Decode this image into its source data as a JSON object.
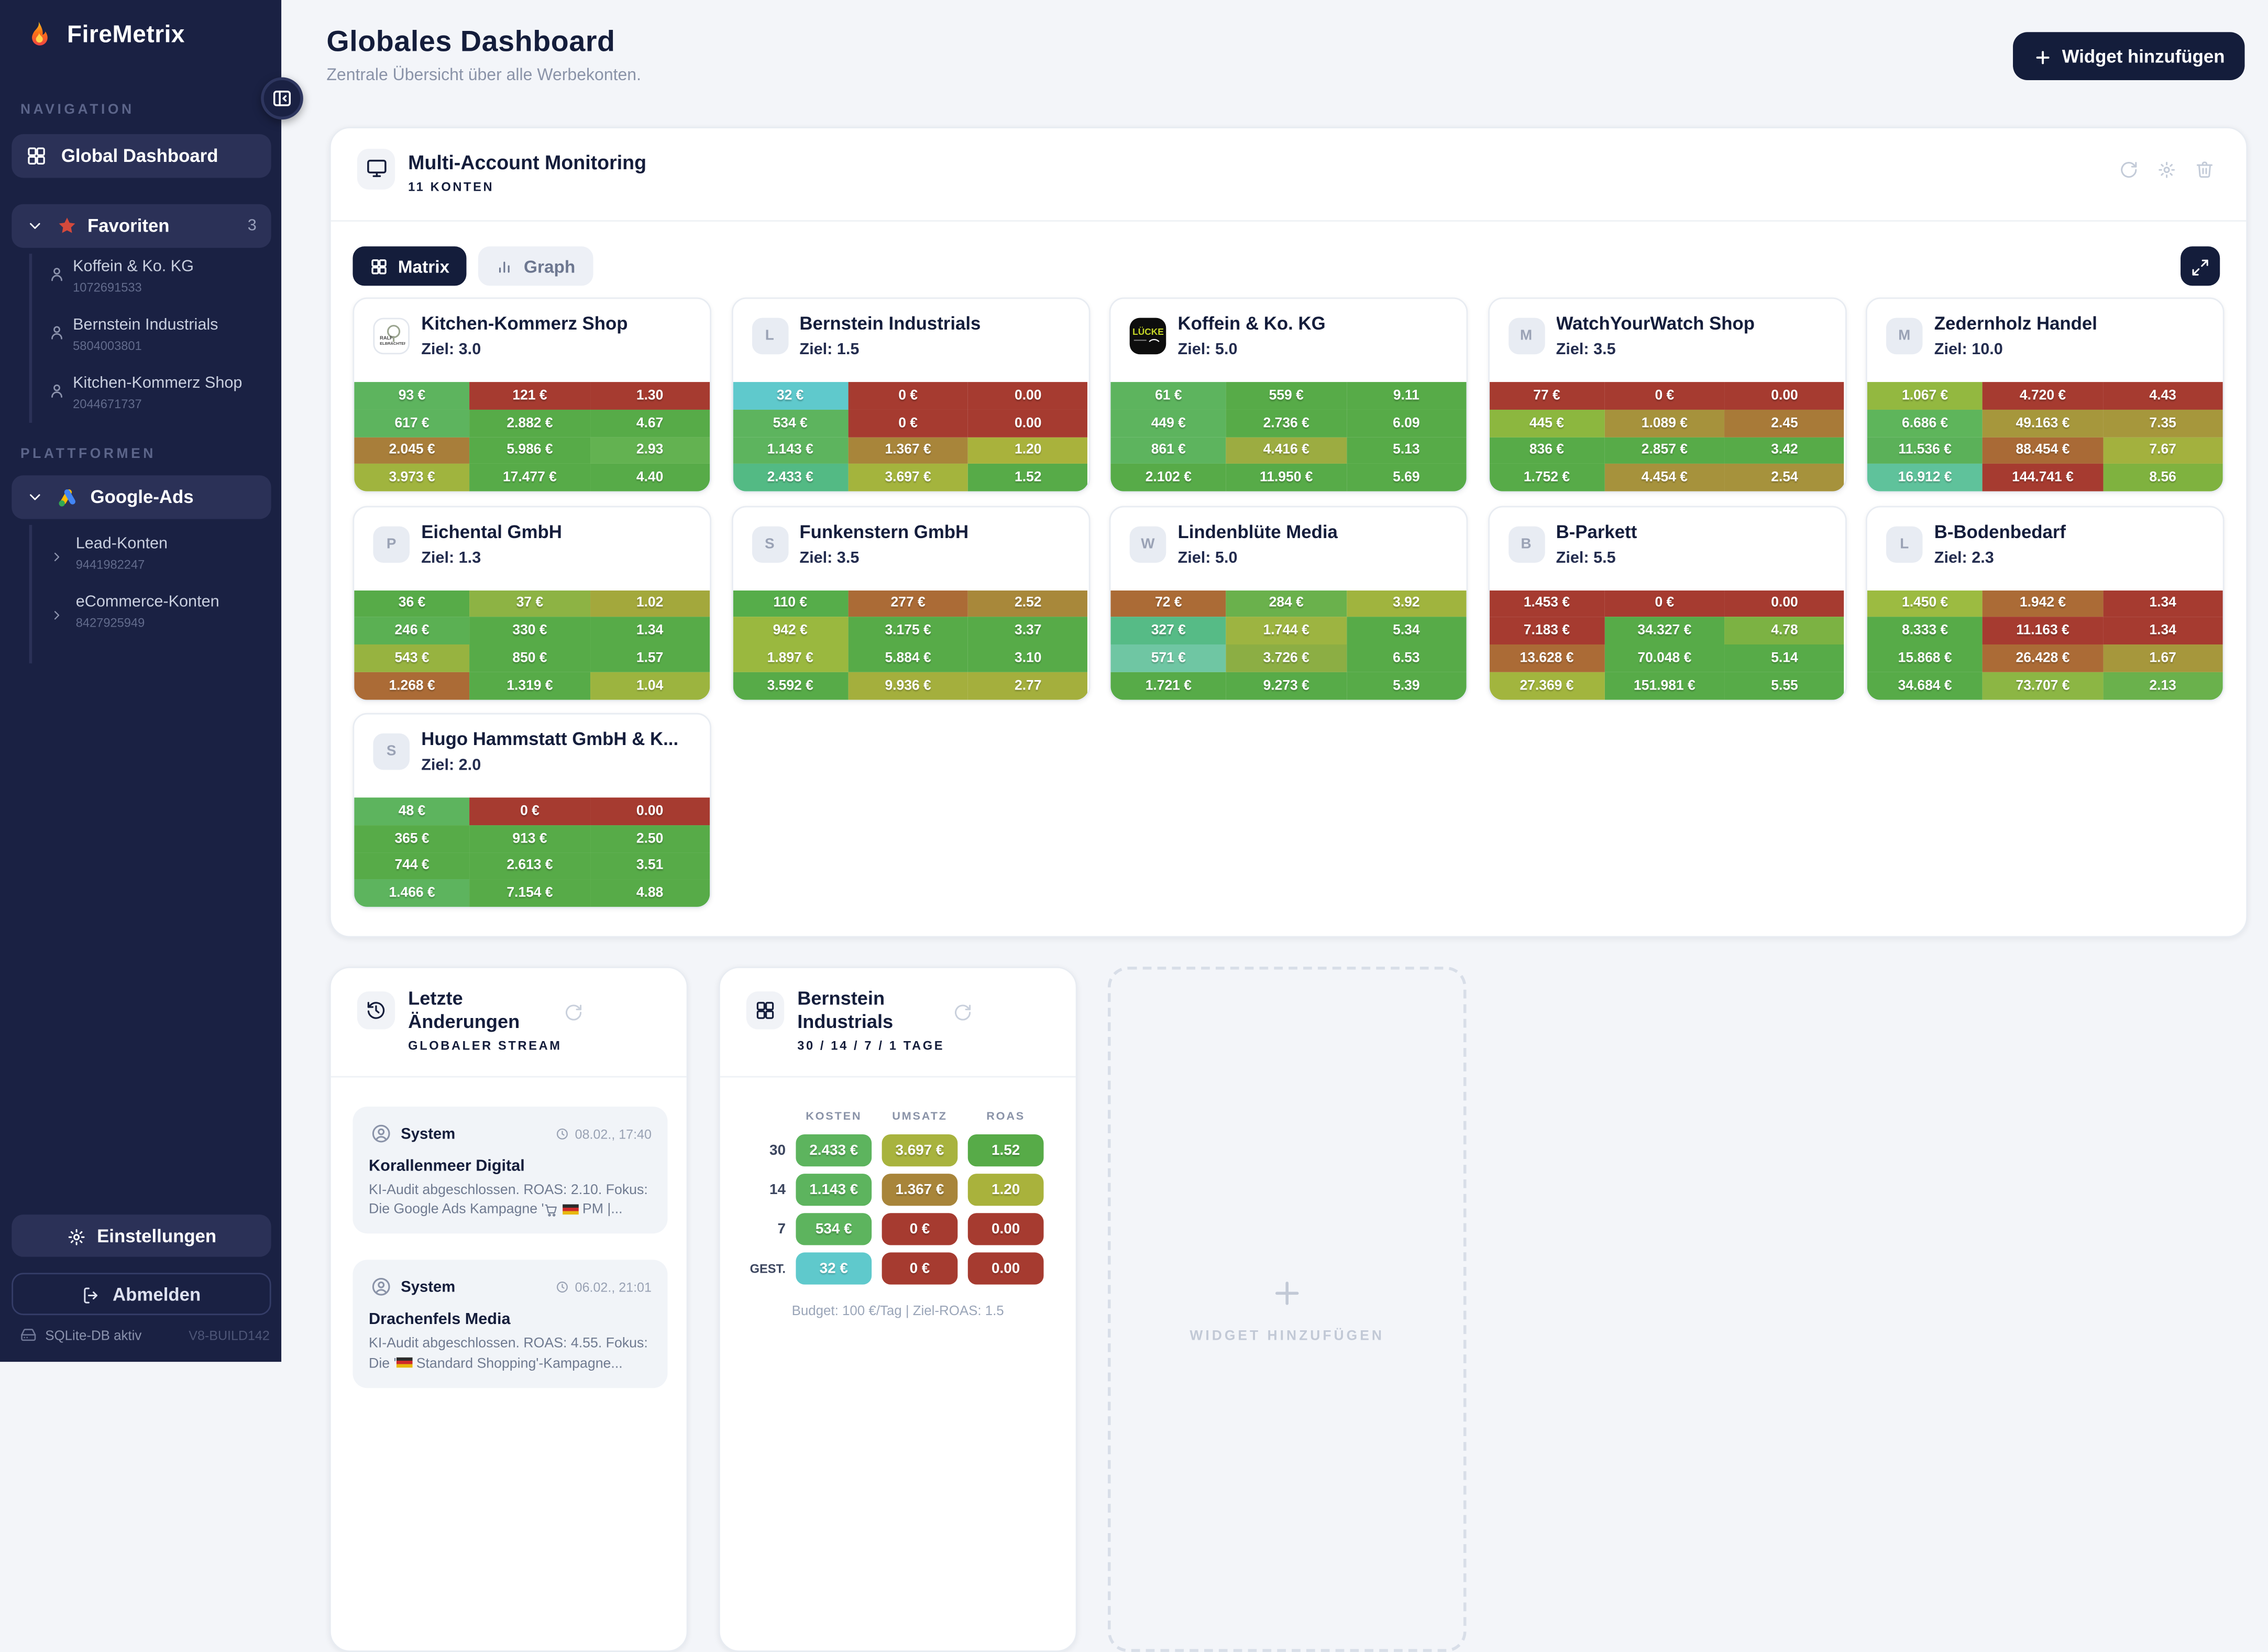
{
  "sidebar": {
    "brand": "FireMetrix",
    "nav_label": "NAVIGATION",
    "dashboard_item": "Global Dashboard",
    "favorites": {
      "label": "Favoriten",
      "count": "3",
      "items": [
        {
          "name": "Koffein & Ko. KG",
          "id": "1072691533"
        },
        {
          "name": "Bernstein Industrials",
          "id": "5804003801"
        },
        {
          "name": "Kitchen-Kommerz Shop",
          "id": "2044671737"
        }
      ]
    },
    "platforms_label": "PLATTFORMEN",
    "platform": {
      "label": "Google-Ads",
      "items": [
        {
          "name": "Lead-Konten",
          "id": "9441982247"
        },
        {
          "name": "eCommerce-Konten",
          "id": "8427925949"
        }
      ]
    },
    "settings_label": "Einstellungen",
    "logout_label": "Abmelden",
    "db_status": "SQLite-DB aktiv",
    "build": "V8-BUILD142"
  },
  "header": {
    "title": "Globales Dashboard",
    "subtitle": "Zentrale Übersicht über alle Werbekonten.",
    "add_widget_label": "Widget hinzufügen"
  },
  "monitor": {
    "title": "Multi-Account Monitoring",
    "subtitle": "11 KONTEN",
    "matrix_tab": "Matrix",
    "graph_tab": "Graph"
  },
  "accounts": [
    {
      "name": "Kitchen-Kommerz Shop",
      "goal": "Ziel: 3.0",
      "avatar": "logo-kitchen",
      "rows": [
        [
          [
            "93 €",
            "#5db45e"
          ],
          [
            "121 €",
            "#a63b30"
          ],
          [
            "1.30",
            "#a63b30"
          ]
        ],
        [
          [
            "617 €",
            "#5db45e"
          ],
          [
            "2.882 €",
            "#57ab48"
          ],
          [
            "4.67",
            "#57ab48"
          ]
        ],
        [
          [
            "2.045 €",
            "#a87e3a"
          ],
          [
            "5.986 €",
            "#57ab48"
          ],
          [
            "2.93",
            "#63b251"
          ]
        ],
        [
          [
            "3.973 €",
            "#a0b43e"
          ],
          [
            "17.477 €",
            "#57ab48"
          ],
          [
            "4.40",
            "#57ab48"
          ]
        ]
      ]
    },
    {
      "name": "Bernstein Industrials",
      "goal": "Ziel: 1.5",
      "avatar": "L",
      "rows": [
        [
          [
            "32 €",
            "#5fc9cc"
          ],
          [
            "0 €",
            "#a63b30"
          ],
          [
            "0.00",
            "#a63b30"
          ]
        ],
        [
          [
            "534 €",
            "#5db45e"
          ],
          [
            "0 €",
            "#a63b30"
          ],
          [
            "0.00",
            "#a63b30"
          ]
        ],
        [
          [
            "1.143 €",
            "#5db45e"
          ],
          [
            "1.367 €",
            "#a8853a"
          ],
          [
            "1.20",
            "#a9b23c"
          ]
        ],
        [
          [
            "2.433 €",
            "#53ba84"
          ],
          [
            "3.697 €",
            "#a4b43d"
          ],
          [
            "1.52",
            "#57ab48"
          ]
        ]
      ]
    },
    {
      "name": "Koffein & Ko. KG",
      "goal": "Ziel: 5.0",
      "avatar": "logo-koffein",
      "rows": [
        [
          [
            "61 €",
            "#5db45e"
          ],
          [
            "559 €",
            "#57ab48"
          ],
          [
            "9.11",
            "#57ab48"
          ]
        ],
        [
          [
            "449 €",
            "#5db45e"
          ],
          [
            "2.736 €",
            "#57ab48"
          ],
          [
            "6.09",
            "#57ab48"
          ]
        ],
        [
          [
            "861 €",
            "#5db45e"
          ],
          [
            "4.416 €",
            "#9cac41"
          ],
          [
            "5.13",
            "#57ab48"
          ]
        ],
        [
          [
            "2.102 €",
            "#57ab48"
          ],
          [
            "11.950 €",
            "#57ab48"
          ],
          [
            "5.69",
            "#57ab48"
          ]
        ]
      ]
    },
    {
      "name": "WatchYourWatch Shop",
      "goal": "Ziel: 3.5",
      "avatar": "M",
      "rows": [
        [
          [
            "77 €",
            "#a63b30"
          ],
          [
            "0 €",
            "#a63b30"
          ],
          [
            "0.00",
            "#a63b30"
          ]
        ],
        [
          [
            "445 €",
            "#8cb73f"
          ],
          [
            "1.089 €",
            "#a6923c"
          ],
          [
            "2.45",
            "#a87a38"
          ]
        ],
        [
          [
            "836 €",
            "#57ab48"
          ],
          [
            "2.857 €",
            "#57ab48"
          ],
          [
            "3.42",
            "#57ab48"
          ]
        ],
        [
          [
            "1.752 €",
            "#57ab48"
          ],
          [
            "4.454 €",
            "#a6923c"
          ],
          [
            "2.54",
            "#a6923c"
          ]
        ]
      ]
    },
    {
      "name": "Zedernholz Handel",
      "goal": "Ziel: 10.0",
      "avatar": "M",
      "rows": [
        [
          [
            "1.067 €",
            "#93b840"
          ],
          [
            "4.720 €",
            "#a63b30"
          ],
          [
            "4.43",
            "#a63b30"
          ]
        ],
        [
          [
            "6.686 €",
            "#5eb55b"
          ],
          [
            "49.163 €",
            "#a6973c"
          ],
          [
            "7.35",
            "#a6973c"
          ]
        ],
        [
          [
            "11.536 €",
            "#5bb159"
          ],
          [
            "88.454 €",
            "#a96a36"
          ],
          [
            "7.67",
            "#a3b13e"
          ]
        ],
        [
          [
            "16.912 €",
            "#5fc29b"
          ],
          [
            "144.741 €",
            "#a63b30"
          ],
          [
            "8.56",
            "#7fb23f"
          ]
        ]
      ]
    },
    {
      "name": "Eichental GmbH",
      "goal": "Ziel: 1.3",
      "avatar": "P",
      "rows": [
        [
          [
            "36 €",
            "#57ab48"
          ],
          [
            "37 €",
            "#8db344"
          ],
          [
            "1.02",
            "#a3a83c"
          ]
        ],
        [
          [
            "246 €",
            "#5bb053"
          ],
          [
            "330 €",
            "#57ab48"
          ],
          [
            "1.34",
            "#57ab48"
          ]
        ],
        [
          [
            "543 €",
            "#97b340"
          ],
          [
            "850 €",
            "#57ab48"
          ],
          [
            "1.57",
            "#57ab48"
          ]
        ],
        [
          [
            "1.268 €",
            "#ab6b36"
          ],
          [
            "1.319 €",
            "#57ab48"
          ],
          [
            "1.04",
            "#9cb43f"
          ]
        ]
      ]
    },
    {
      "name": "Funkenstern GmbH",
      "goal": "Ziel: 3.5",
      "avatar": "S",
      "rows": [
        [
          [
            "110 €",
            "#56ad4a"
          ],
          [
            "277 €",
            "#ab6b36"
          ],
          [
            "2.52",
            "#a8883a"
          ]
        ],
        [
          [
            "942 €",
            "#9ab83f"
          ],
          [
            "3.175 €",
            "#57ab48"
          ],
          [
            "3.37",
            "#57ab48"
          ]
        ],
        [
          [
            "1.897 €",
            "#9ab83f"
          ],
          [
            "5.884 €",
            "#57ab48"
          ],
          [
            "3.10",
            "#57ab48"
          ]
        ],
        [
          [
            "3.592 €",
            "#57ab48"
          ],
          [
            "9.936 €",
            "#a4af3d"
          ],
          [
            "2.77",
            "#a4af3d"
          ]
        ]
      ]
    },
    {
      "name": "Lindenblüte Media",
      "goal": "Ziel: 5.0",
      "avatar": "W",
      "rows": [
        [
          [
            "72 €",
            "#ab6b36"
          ],
          [
            "284 €",
            "#6ab14c"
          ],
          [
            "3.92",
            "#a0b43e"
          ]
        ],
        [
          [
            "327 €",
            "#56bb86"
          ],
          [
            "1.744 €",
            "#9db441"
          ],
          [
            "5.34",
            "#57ab48"
          ]
        ],
        [
          [
            "571 €",
            "#6fc6a3"
          ],
          [
            "3.726 €",
            "#8cae44"
          ],
          [
            "6.53",
            "#57ab48"
          ]
        ],
        [
          [
            "1.721 €",
            "#57ab48"
          ],
          [
            "9.273 €",
            "#57ab48"
          ],
          [
            "5.39",
            "#57ab48"
          ]
        ]
      ]
    },
    {
      "name": "B-Parkett",
      "goal": "Ziel: 5.5",
      "avatar": "B",
      "rows": [
        [
          [
            "1.453 €",
            "#a63b30"
          ],
          [
            "0 €",
            "#a63b30"
          ],
          [
            "0.00",
            "#a63b30"
          ]
        ],
        [
          [
            "7.183 €",
            "#a63b30"
          ],
          [
            "34.327 €",
            "#57ab48"
          ],
          [
            "4.78",
            "#7cb243"
          ]
        ],
        [
          [
            "13.628 €",
            "#ab6b36"
          ],
          [
            "70.048 €",
            "#57ab48"
          ],
          [
            "5.14",
            "#57ab48"
          ]
        ],
        [
          [
            "27.369 €",
            "#a2b53e"
          ],
          [
            "151.981 €",
            "#57ab48"
          ],
          [
            "5.55",
            "#57ab48"
          ]
        ]
      ]
    },
    {
      "name": "B-Bodenbedarf",
      "goal": "Ziel: 2.3",
      "avatar": "L",
      "rows": [
        [
          [
            "1.450 €",
            "#9cbb41"
          ],
          [
            "1.942 €",
            "#ab6b36"
          ],
          [
            "1.34",
            "#a63b30"
          ]
        ],
        [
          [
            "8.333 €",
            "#57ab48"
          ],
          [
            "11.163 €",
            "#a63b30"
          ],
          [
            "1.34",
            "#a63b30"
          ]
        ],
        [
          [
            "15.868 €",
            "#57ab48"
          ],
          [
            "26.428 €",
            "#ab6b36"
          ],
          [
            "1.67",
            "#a6973c"
          ]
        ],
        [
          [
            "34.684 €",
            "#57ab48"
          ],
          [
            "73.707 €",
            "#8cb644"
          ],
          [
            "2.13",
            "#6ab14c"
          ]
        ]
      ]
    },
    {
      "name": "Hugo Hammstatt GmbH & K...",
      "goal": "Ziel: 2.0",
      "avatar": "S",
      "rows": [
        [
          [
            "48 €",
            "#5db45e"
          ],
          [
            "0 €",
            "#a63b30"
          ],
          [
            "0.00",
            "#a63b30"
          ]
        ],
        [
          [
            "365 €",
            "#57ab48"
          ],
          [
            "913 €",
            "#57ab48"
          ],
          [
            "2.50",
            "#57ab48"
          ]
        ],
        [
          [
            "744 €",
            "#57ab48"
          ],
          [
            "2.613 €",
            "#57ab48"
          ],
          [
            "3.51",
            "#57ab48"
          ]
        ],
        [
          [
            "1.466 €",
            "#5db45e"
          ],
          [
            "7.154 €",
            "#57ab48"
          ],
          [
            "4.88",
            "#57ab48"
          ]
        ]
      ]
    }
  ],
  "stream": {
    "title": "Letzte Änderungen",
    "subtitle": "GLOBALER STREAM",
    "entries": [
      {
        "author": "System",
        "time": "08.02., 17:40",
        "title": "Korallenmeer Digital",
        "line1": "KI-Audit abgeschlossen. ROAS: 2.10. Fokus:",
        "line2_pre": "Die Google Ads Kampagne '",
        "line2_icons": [
          "cart",
          "flag-de"
        ],
        "line2_post": " PM |..."
      },
      {
        "author": "System",
        "time": "06.02., 21:01",
        "title": "Drachenfels Media",
        "line1": "KI-Audit abgeschlossen. ROAS: 4.55. Fokus:",
        "line2_pre": "Die '",
        "line2_icons": [
          "flag-de"
        ],
        "line2_post": " Standard Shopping'-Kampagne..."
      }
    ]
  },
  "account_detail": {
    "title": "Bernstein Industrials",
    "subtitle": "30 / 14 / 7 / 1 TAGE",
    "columns": [
      "KOSTEN",
      "UMSATZ",
      "ROAS"
    ],
    "rows": [
      {
        "label": "30",
        "cells": [
          [
            "2.433 €",
            "#5db45e"
          ],
          [
            "3.697 €",
            "#a8b33e"
          ],
          [
            "1.52",
            "#57ab48"
          ]
        ]
      },
      {
        "label": "14",
        "cells": [
          [
            "1.143 €",
            "#5db45e"
          ],
          [
            "1.367 €",
            "#a8853a"
          ],
          [
            "1.20",
            "#a9b23c"
          ]
        ]
      },
      {
        "label": "7",
        "cells": [
          [
            "534 €",
            "#5db45e"
          ],
          [
            "0 €",
            "#a63b30"
          ],
          [
            "0.00",
            "#a63b30"
          ]
        ]
      },
      {
        "label": "GEST.",
        "cells": [
          [
            "32 €",
            "#5fc9cc"
          ],
          [
            "0 €",
            "#a63b30"
          ],
          [
            "0.00",
            "#a63b30"
          ]
        ]
      }
    ],
    "footer": "Budget: 100 €/Tag | Ziel-ROAS: 1.5"
  },
  "placeholder": {
    "label": "WIDGET HINZUFÜGEN"
  },
  "colors": {
    "sidebar_bg": "#1a2143",
    "accent": "#141d3b",
    "page_bg": "#f3f5f9",
    "star": "#d4493c",
    "cell_red": "#a63b30",
    "cell_green": "#57ab48",
    "cell_cyan": "#5fc9cc"
  }
}
